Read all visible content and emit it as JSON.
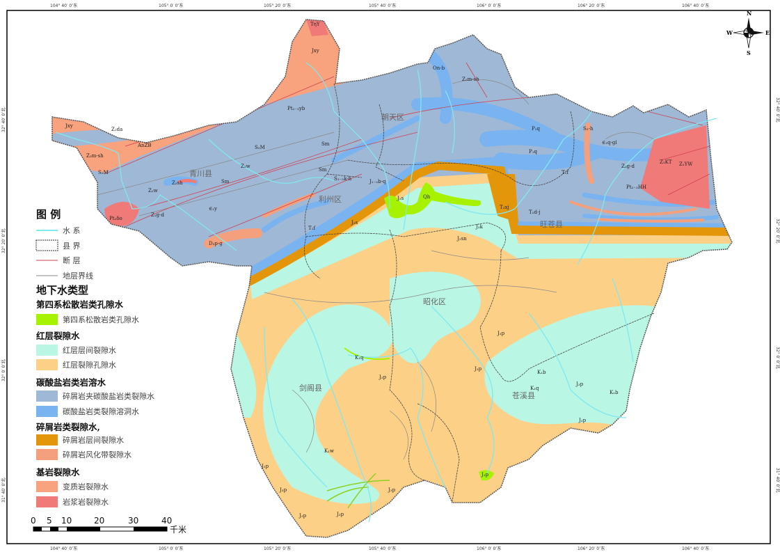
{
  "colors": {
    "quaternary_pore": "#a6f200",
    "red_bed_interlayer": "#b9f6e4",
    "red_bed_pore": "#fdd087",
    "clastic_with_carbonate": "#9fb8d6",
    "carbonate_karst": "#79b3f0",
    "clastic_interlayer": "#e4960a",
    "clastic_weathering": "#f4a07c",
    "metamorphic": "#f8a27e",
    "magmatic": "#f07a78",
    "river": "#7fe8f0",
    "fault": "#d04050",
    "strata_line": "#888888",
    "county_border": "#444444"
  },
  "longitude_ticks": [
    "104° 40′ 0″东",
    "105° 0′ 0″东",
    "105° 20′ 0″东",
    "105° 40′ 0″东",
    "106° 0′ 0″东",
    "106° 20′ 0″东",
    "106° 40′ 0″东"
  ],
  "latitude_ticks": [
    "32° 40′ 0″北",
    "32° 20′ 0″北",
    "32° 0′ 0″北",
    "31° 40′ 0″北"
  ],
  "compass": {
    "n": "N",
    "s": "S",
    "e": "E",
    "w": "W"
  },
  "counties": [
    "青川县",
    "朝天区",
    "利州区",
    "旺苍县",
    "昭化区",
    "剑阁县",
    "苍溪县"
  ],
  "geo_labels": [
    "TηY",
    "Jxy",
    "Pt₂₋₃yb",
    "Jxy",
    "Z₁da",
    "AnZB",
    "Z₂m-sh",
    "S₂M",
    "S₂M",
    "Z₂w",
    "Sm",
    "Sm",
    "Sm",
    "Z₂sh",
    "Z₂w",
    "∈₁y",
    "Z₁g-d",
    "Pt₃δo",
    "D₃p-g",
    "S₁₋₂k-h",
    "J₁₋₂b-q",
    "T₁f",
    "J₂s",
    "J₂s",
    "Qh",
    "T₃xj",
    "T₂d-j",
    "J₃k",
    "J₂sn",
    "On-b",
    "Z₂m-sh",
    "P₂q",
    "P₁q",
    "T₁f",
    "S₂-h",
    "∈₁q-gl",
    "Z₂g-d",
    "Z₁KT",
    "Z₁YW",
    "Pt₂₋₃HH",
    "K₁q",
    "J₃p",
    "J₃p",
    "J₃p",
    "J₃p",
    "J₃p",
    "K₁b",
    "K₁q",
    "K₁b",
    "K₁w",
    "J₃p",
    "J₃p",
    "J₃p",
    "J₃p",
    "J₃p",
    "J₃p"
  ],
  "legend": {
    "title": "图  例",
    "lines": [
      {
        "label": "水  系",
        "kind": "river"
      },
      {
        "label": "县  界",
        "kind": "county_border"
      },
      {
        "label": "断  层",
        "kind": "fault"
      },
      {
        "label": "地层界线",
        "kind": "strata_line"
      }
    ],
    "section_title": "地下水类型",
    "groups": [
      {
        "title": "第四系松散岩类孔隙水",
        "items": [
          {
            "label": "第四系松散岩类孔隙水",
            "color": "#a6f200"
          }
        ]
      },
      {
        "title": "红层裂隙水",
        "items": [
          {
            "label": "红层层间裂隙水",
            "color": "#b9f6e4"
          },
          {
            "label": "红层裂隙孔隙水",
            "color": "#fdd087"
          }
        ]
      },
      {
        "title": "碳酸盐岩类岩溶水",
        "items": [
          {
            "label": "碎屑岩夹碳酸盐岩类裂隙水",
            "color": "#9fb8d6"
          },
          {
            "label": "碳酸盐岩类裂隙溶洞水",
            "color": "#79b3f0"
          }
        ]
      },
      {
        "title": "碎屑岩类裂隙水,",
        "items": [
          {
            "label": "碎屑岩层间裂隙水",
            "color": "#e4960a"
          },
          {
            "label": "碎屑岩风化带裂隙水",
            "color": "#f4a07c"
          }
        ]
      },
      {
        "title": "基岩裂隙水",
        "items": [
          {
            "label": "变质岩裂隙水",
            "color": "#f8a27e"
          },
          {
            "label": "岩浆岩裂隙水",
            "color": "#f07a78"
          }
        ]
      }
    ]
  },
  "scale_bar": {
    "ticks": [
      "0",
      "5",
      "10",
      "20",
      "30",
      "40"
    ],
    "unit": "千米"
  }
}
